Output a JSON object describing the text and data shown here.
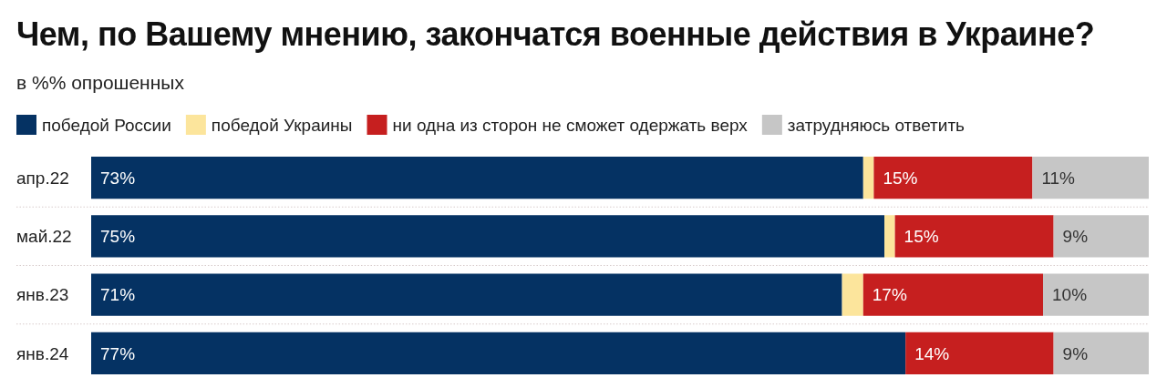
{
  "chart_data": {
    "type": "bar",
    "title": "Чем, по Вашему мнению, закончатся военные действия в Украине?",
    "subtitle": "в %% опрошенных",
    "orientation": "horizontal",
    "stacked": true,
    "categories": [
      "апр.22",
      "май.22",
      "янв.23",
      "янв.24"
    ],
    "series": [
      {
        "name": "победой России",
        "color": "#053263",
        "values": [
          73,
          75,
          71,
          77
        ],
        "value_labels": [
          "73%",
          "75%",
          "71%",
          "77%"
        ]
      },
      {
        "name": "победой Украины",
        "color": "#fce59c",
        "values": [
          1,
          1,
          2,
          0
        ]
      },
      {
        "name": "ни одна из сторон не сможет одержать верх",
        "color": "#c61f1f",
        "values": [
          15,
          15,
          17,
          14
        ],
        "value_labels": [
          "15%",
          "15%",
          "17%",
          "14%"
        ]
      },
      {
        "name": "затрудняюсь ответить",
        "color": "#c6c6c6",
        "values": [
          11,
          9,
          10,
          9
        ],
        "value_labels": [
          "11%",
          "9%",
          "10%",
          "9%"
        ]
      }
    ],
    "legend": "top left",
    "grid": "y",
    "tick_labels": "y"
  }
}
